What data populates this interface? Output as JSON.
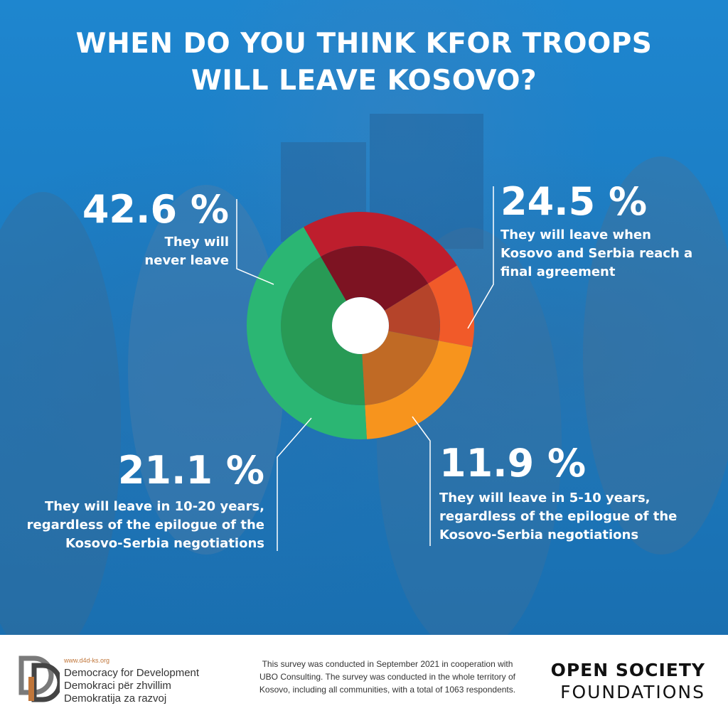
{
  "title": {
    "line1": "WHEN DO YOU THINK KFOR TROOPS",
    "line2": "WILL LEAVE KOSOVO?"
  },
  "labels": {
    "never": {
      "pct": "42.6 %",
      "line1": "They will",
      "line2": "never leave"
    },
    "agreement": {
      "pct": "24.5 %",
      "line1": "They will leave when",
      "line2": "Kosovo and Serbia reach a",
      "line3": "final agreement"
    },
    "five_ten": {
      "pct": "11.9 %",
      "line1": "They will leave in 5-10 years,",
      "line2": "regardless of the epilogue of the",
      "line3": "Kosovo-Serbia negotiations"
    },
    "ten_twenty": {
      "pct": "21.1 %",
      "line1": "They will leave in 10-20 years,",
      "line2": "regardless of the epilogue of the",
      "line3": "Kosovo-Serbia negotiations"
    }
  },
  "chart_data": {
    "type": "pie",
    "title": "WHEN DO YOU THINK KFOR TROOPS WILL LEAVE KOSOVO?",
    "categories": [
      "They will leave when Kosovo and Serbia reach a final agreement",
      "They will leave in 5-10 years, regardless of the epilogue of the Kosovo-Serbia negotiations",
      "They will leave in 10-20 years, regardless of the epilogue of the Kosovo-Serbia negotiations",
      "They will never leave"
    ],
    "values": [
      24.5,
      11.9,
      21.1,
      42.6
    ],
    "colors": [
      "#be1e2d",
      "#f15a29",
      "#f7941d",
      "#2bb673"
    ],
    "inner_colors": [
      "#7d1322",
      "#b5442a",
      "#c06a25",
      "#289a55"
    ],
    "unit": "%"
  },
  "footer": {
    "url": "www.d4d-ks.org",
    "org_en": "Democracy for Development",
    "org_sq": "Demokraci për zhvillim",
    "org_sr": "Demokratija za razvoj",
    "note": "This survey was conducted in September 2021 in cooperation with UBO Consulting. The survey was conducted in the whole territory of Kosovo, including all communities, with a total of 1063 respondents.",
    "osf_line1": "OPEN SOCIETY",
    "osf_line2": "FOUNDATIONS"
  }
}
